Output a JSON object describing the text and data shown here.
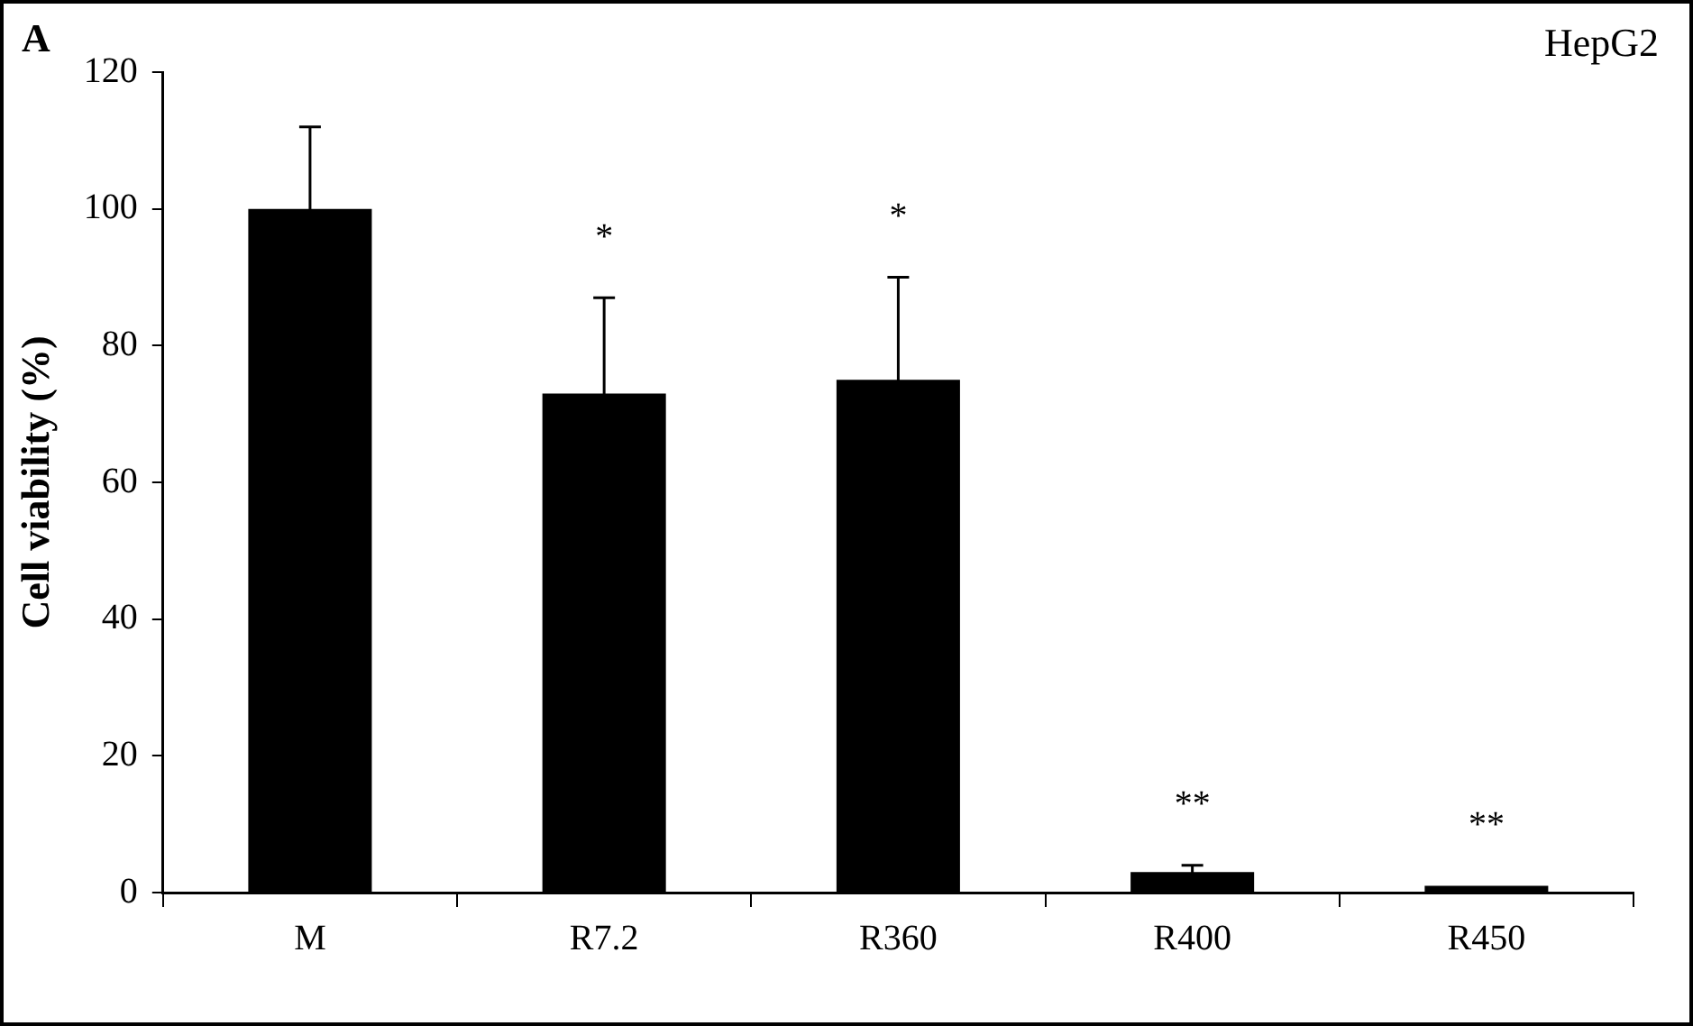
{
  "chart_data": {
    "type": "bar",
    "ylabel": "Cell viability (%)",
    "categories": [
      "M",
      "R7.2",
      "R360",
      "R400",
      "R450"
    ],
    "values": [
      100,
      73,
      75,
      3,
      1
    ],
    "errors": [
      12,
      14,
      15,
      1,
      null
    ],
    "color": "#000000",
    "ylim": [
      0,
      120
    ],
    "yticks": [
      0,
      20,
      40,
      60,
      80,
      100,
      120
    ],
    "grid": false,
    "legend": false,
    "annotations": [
      "A",
      "HepG2",
      "*",
      "*",
      "**",
      "**"
    ]
  }
}
